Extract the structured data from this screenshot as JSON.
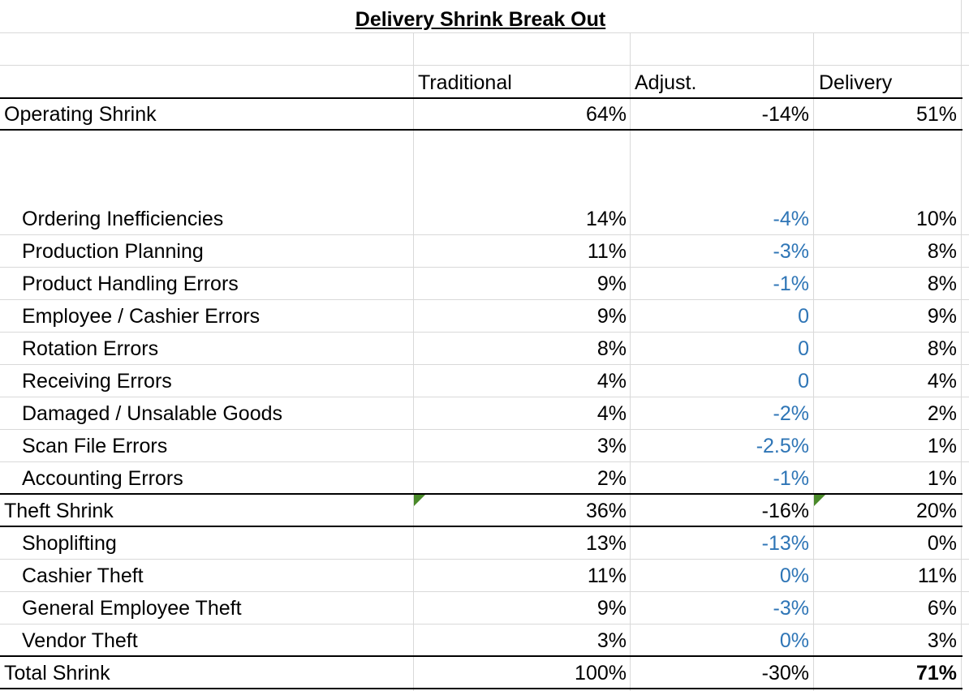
{
  "title": "Delivery Shrink Break Out",
  "columns": [
    "Traditional",
    "Adjust.",
    "Delivery"
  ],
  "operating": {
    "label": "Operating Shrink",
    "values": [
      "64%",
      "-14%",
      "51%"
    ]
  },
  "operating_items": [
    {
      "label": "Ordering Inefficiencies",
      "values": [
        "14%",
        "-4%",
        "10%"
      ]
    },
    {
      "label": "Production Planning",
      "values": [
        "11%",
        "-3%",
        "8%"
      ]
    },
    {
      "label": "Product Handling Errors",
      "values": [
        "9%",
        "-1%",
        "8%"
      ]
    },
    {
      "label": "Employee / Cashier Errors",
      "values": [
        "9%",
        "0",
        "9%"
      ]
    },
    {
      "label": "Rotation Errors",
      "values": [
        "8%",
        "0",
        "8%"
      ]
    },
    {
      "label": "Receiving Errors",
      "values": [
        "4%",
        "0",
        "4%"
      ]
    },
    {
      "label": "Damaged / Unsalable Goods",
      "values": [
        "4%",
        "-2%",
        "2%"
      ]
    },
    {
      "label": "Scan File Errors",
      "values": [
        "3%",
        "-2.5%",
        "1%"
      ]
    },
    {
      "label": "Accounting Errors",
      "values": [
        "2%",
        "-1%",
        "1%"
      ]
    }
  ],
  "theft": {
    "label": "Theft Shrink",
    "values": [
      "36%",
      "-16%",
      "20%"
    ]
  },
  "theft_items": [
    {
      "label": "Shoplifting",
      "values": [
        "13%",
        "-13%",
        "0%"
      ]
    },
    {
      "label": "Cashier Theft",
      "values": [
        "11%",
        "0%",
        "11%"
      ]
    },
    {
      "label": "General Employee Theft",
      "values": [
        "9%",
        "-3%",
        "6%"
      ]
    },
    {
      "label": "Vendor Theft",
      "values": [
        "3%",
        "0%",
        "3%"
      ]
    }
  ],
  "total": {
    "label": "Total Shrink",
    "values": [
      "100%",
      "-30%",
      "71%"
    ]
  },
  "colors": {
    "adjust_blue": "#2e75b6",
    "gridline": "#d9d9d9",
    "error_indicator": "#4a8a2a"
  }
}
